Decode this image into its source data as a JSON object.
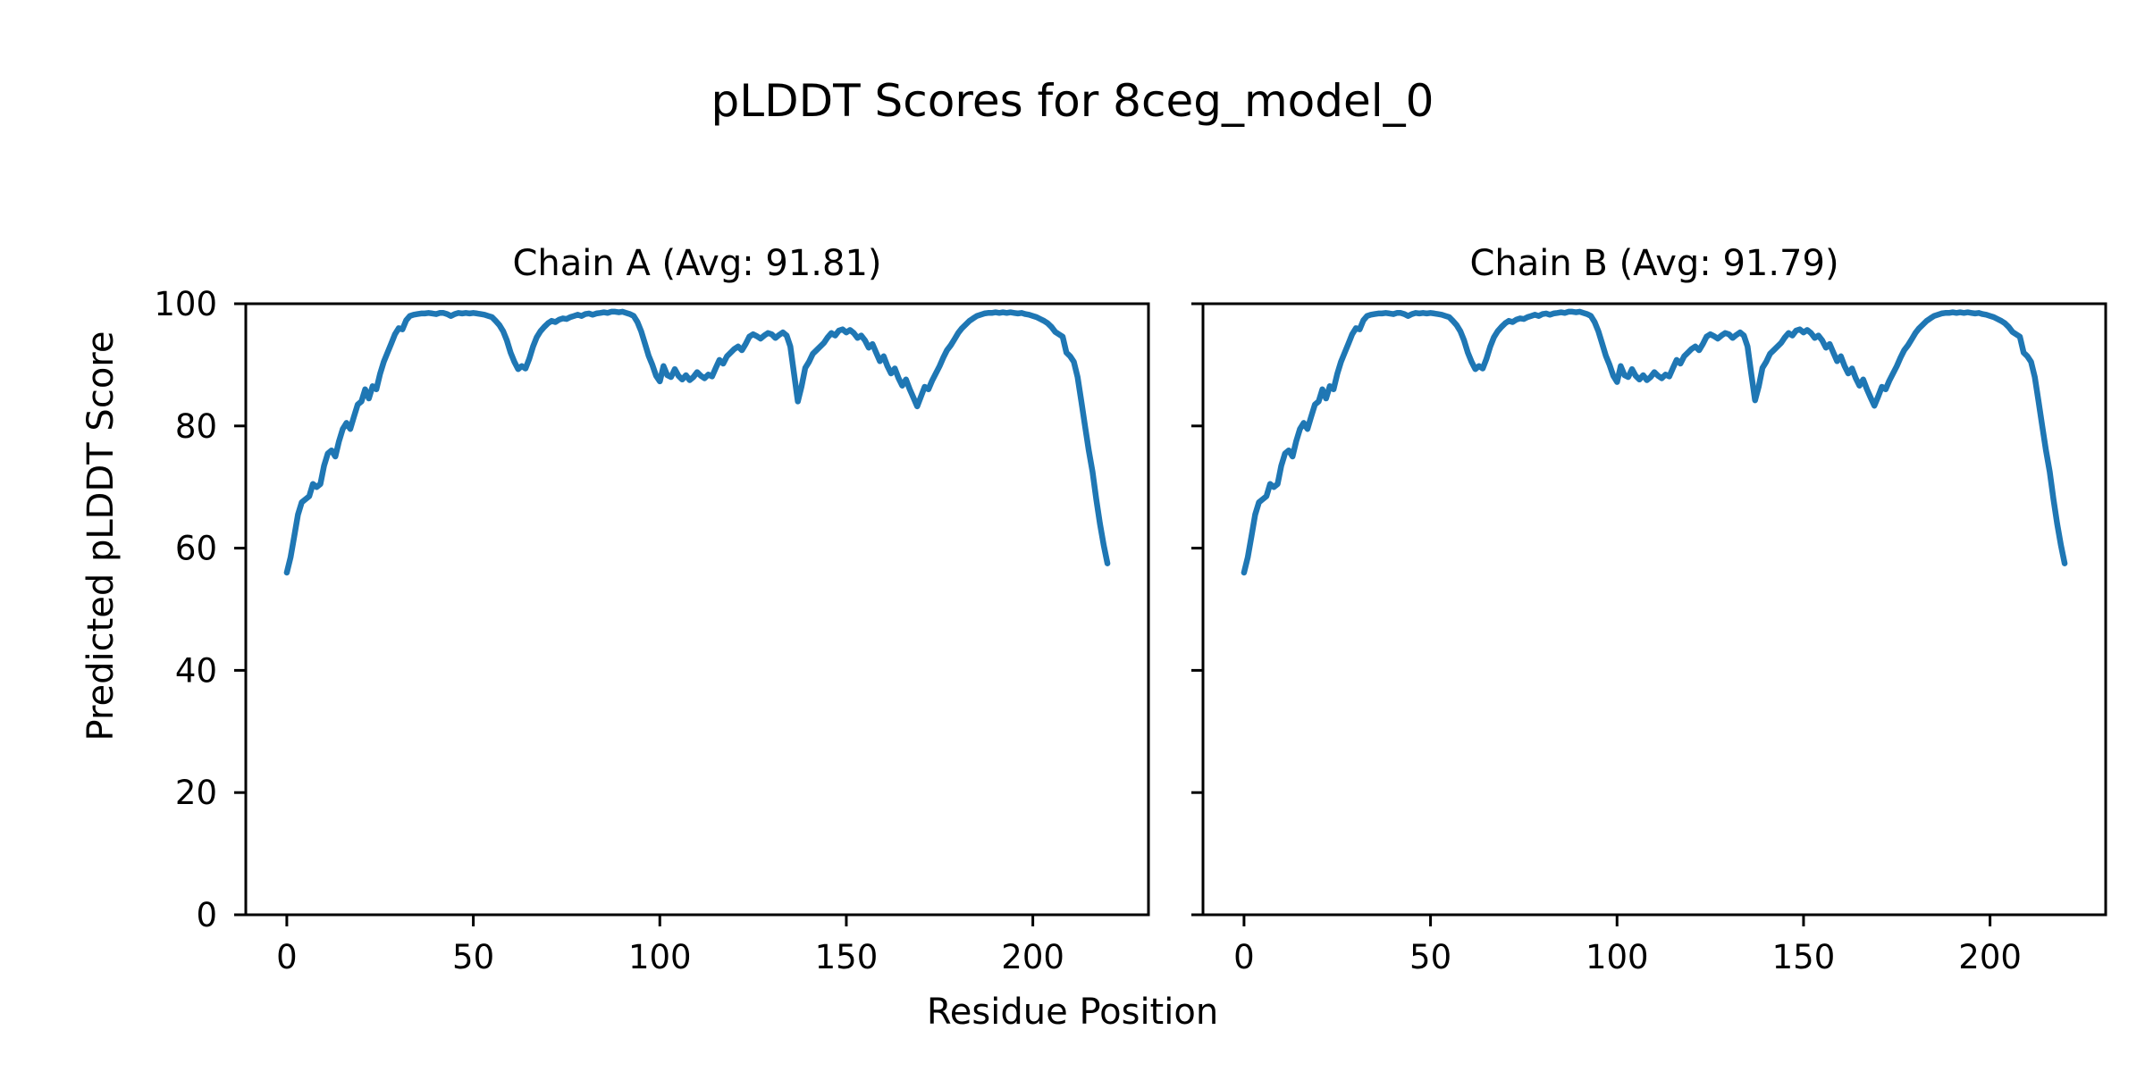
{
  "figure": {
    "suptitle": "pLDDT Scores for 8ceg_model_0",
    "shared_xlabel": "Residue Position",
    "shared_ylabel": "Predicted pLDDT Score",
    "line_color": "#1f77b4",
    "background": "#ffffff",
    "text_color": "#000000"
  },
  "chart_data": [
    {
      "type": "line",
      "chain": "A",
      "title": "Chain A (Avg: 91.81)",
      "average_plddt": 91.81,
      "xlabel": "Residue Position",
      "ylabel": "Predicted pLDDT Score",
      "xlim": [
        -11,
        231
      ],
      "ylim": [
        0,
        100
      ],
      "xticks": [
        0,
        50,
        100,
        150,
        200
      ],
      "yticks": [
        0,
        20,
        40,
        60,
        80,
        100
      ],
      "grid": false,
      "legend": "none",
      "x_start": 0,
      "x_step": 1,
      "values": [
        56.0,
        58.5,
        62.0,
        65.5,
        67.5,
        68.0,
        68.5,
        70.5,
        70.0,
        70.5,
        73.5,
        75.5,
        76.0,
        75.0,
        77.5,
        79.5,
        80.5,
        79.5,
        81.5,
        83.5,
        84.0,
        86.0,
        84.5,
        86.5,
        86.0,
        88.5,
        90.5,
        92.0,
        93.5,
        95.0,
        96.0,
        95.8,
        97.3,
        98.0,
        98.2,
        98.3,
        98.4,
        98.4,
        98.5,
        98.4,
        98.3,
        98.5,
        98.5,
        98.3,
        98.0,
        98.3,
        98.5,
        98.4,
        98.5,
        98.4,
        98.5,
        98.4,
        98.3,
        98.2,
        98.0,
        97.8,
        97.2,
        96.5,
        95.5,
        94.0,
        92.0,
        90.5,
        89.3,
        89.8,
        89.4,
        91.0,
        93.0,
        94.5,
        95.5,
        96.2,
        96.8,
        97.2,
        97.0,
        97.4,
        97.6,
        97.5,
        97.8,
        98.0,
        98.2,
        98.0,
        98.3,
        98.4,
        98.2,
        98.4,
        98.5,
        98.6,
        98.5,
        98.7,
        98.7,
        98.6,
        98.7,
        98.5,
        98.3,
        98.0,
        97.0,
        95.5,
        93.5,
        91.5,
        90.0,
        88.2,
        87.3,
        89.8,
        88.3,
        88.0,
        89.3,
        88.2,
        87.6,
        88.3,
        87.5,
        88.0,
        88.8,
        88.2,
        87.8,
        88.4,
        88.1,
        89.5,
        90.8,
        90.2,
        91.4,
        92.0,
        92.6,
        93.0,
        92.4,
        93.4,
        94.6,
        95.0,
        94.7,
        94.3,
        94.8,
        95.2,
        95.0,
        94.4,
        94.9,
        95.3,
        94.8,
        93.0,
        88.5,
        84.0,
        86.5,
        89.5,
        90.5,
        91.8,
        92.4,
        93.0,
        93.6,
        94.5,
        95.2,
        94.8,
        95.6,
        95.8,
        95.3,
        95.7,
        95.2,
        94.4,
        94.8,
        94.0,
        92.8,
        93.4,
        92.0,
        90.6,
        91.4,
        89.8,
        88.6,
        89.4,
        87.8,
        86.6,
        87.6,
        86.0,
        84.6,
        83.2,
        84.8,
        86.4,
        86.0,
        87.4,
        88.6,
        89.8,
        91.2,
        92.4,
        93.2,
        94.2,
        95.2,
        96.0,
        96.6,
        97.2,
        97.6,
        98.0,
        98.2,
        98.4,
        98.5,
        98.5,
        98.6,
        98.5,
        98.6,
        98.5,
        98.6,
        98.5,
        98.4,
        98.5,
        98.3,
        98.2,
        98.0,
        97.8,
        97.5,
        97.2,
        96.8,
        96.2,
        95.4,
        95.0,
        94.6,
        92.0,
        91.4,
        90.5,
        88.0,
        84.0,
        80.0,
        76.0,
        72.5,
        68.0,
        64.0,
        60.5,
        57.5
      ]
    },
    {
      "type": "line",
      "chain": "B",
      "title": "Chain B (Avg: 91.79)",
      "average_plddt": 91.79,
      "xlabel": "Residue Position",
      "ylabel": "Predicted pLDDT Score",
      "xlim": [
        -11,
        231
      ],
      "ylim": [
        0,
        100
      ],
      "xticks": [
        0,
        50,
        100,
        150,
        200
      ],
      "yticks": [
        0,
        20,
        40,
        60,
        80,
        100
      ],
      "grid": false,
      "legend": "none",
      "x_start": 0,
      "x_step": 1,
      "values": [
        56.0,
        58.5,
        62.0,
        65.5,
        67.5,
        68.0,
        68.5,
        70.5,
        70.0,
        70.5,
        73.5,
        75.5,
        76.0,
        75.0,
        77.5,
        79.5,
        80.5,
        79.5,
        81.5,
        83.5,
        84.0,
        86.0,
        84.5,
        86.5,
        86.0,
        88.5,
        90.5,
        92.0,
        93.5,
        95.0,
        96.0,
        95.8,
        97.3,
        98.0,
        98.2,
        98.3,
        98.4,
        98.4,
        98.5,
        98.4,
        98.3,
        98.5,
        98.5,
        98.3,
        98.0,
        98.3,
        98.5,
        98.4,
        98.5,
        98.4,
        98.5,
        98.4,
        98.3,
        98.2,
        98.0,
        97.8,
        97.2,
        96.5,
        95.5,
        94.0,
        92.0,
        90.5,
        89.3,
        89.8,
        89.4,
        91.0,
        93.0,
        94.5,
        95.5,
        96.2,
        96.8,
        97.2,
        97.0,
        97.4,
        97.6,
        97.5,
        97.8,
        98.0,
        98.2,
        98.0,
        98.3,
        98.4,
        98.2,
        98.4,
        98.5,
        98.6,
        98.5,
        98.7,
        98.7,
        98.6,
        98.7,
        98.5,
        98.3,
        98.0,
        97.0,
        95.5,
        93.5,
        91.5,
        90.0,
        88.2,
        87.2,
        89.8,
        88.3,
        88.0,
        89.3,
        88.2,
        87.6,
        88.3,
        87.5,
        88.0,
        88.8,
        88.2,
        87.8,
        88.4,
        88.1,
        89.5,
        90.8,
        90.2,
        91.4,
        92.0,
        92.6,
        93.0,
        92.4,
        93.4,
        94.6,
        95.0,
        94.7,
        94.3,
        94.8,
        95.2,
        95.0,
        94.4,
        94.9,
        95.3,
        94.8,
        93.0,
        88.5,
        84.2,
        86.5,
        89.5,
        90.5,
        91.8,
        92.4,
        93.0,
        93.6,
        94.5,
        95.2,
        94.8,
        95.6,
        95.8,
        95.3,
        95.7,
        95.2,
        94.4,
        94.8,
        94.0,
        92.8,
        93.4,
        92.0,
        90.6,
        91.4,
        89.8,
        88.6,
        89.4,
        87.8,
        86.6,
        87.6,
        86.0,
        84.6,
        83.3,
        84.8,
        86.4,
        86.0,
        87.4,
        88.6,
        89.8,
        91.2,
        92.4,
        93.2,
        94.2,
        95.2,
        96.0,
        96.6,
        97.2,
        97.6,
        98.0,
        98.2,
        98.4,
        98.5,
        98.5,
        98.6,
        98.5,
        98.6,
        98.5,
        98.6,
        98.5,
        98.4,
        98.5,
        98.3,
        98.2,
        98.0,
        97.8,
        97.5,
        97.2,
        96.8,
        96.2,
        95.4,
        95.0,
        94.6,
        92.0,
        91.4,
        90.5,
        88.0,
        84.0,
        80.0,
        76.0,
        72.5,
        68.0,
        64.0,
        60.5,
        57.5
      ]
    }
  ]
}
